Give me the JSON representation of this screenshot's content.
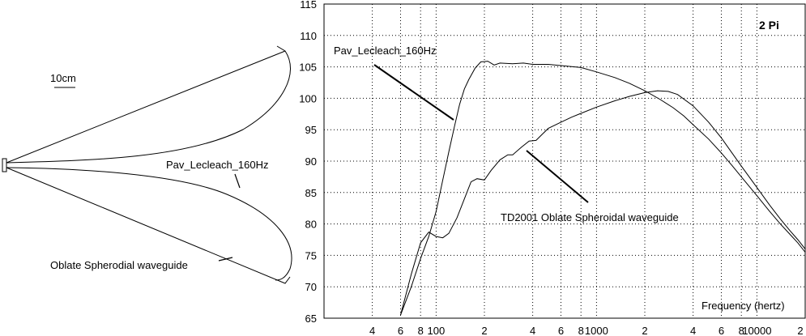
{
  "left_diagram": {
    "scale_label": "10cm",
    "pav_label": "Pav_Lecleach_160Hz",
    "oblate_label": "Oblate Spherodial waveguide"
  },
  "chart_data": {
    "type": "line",
    "title": "2 Pi",
    "xlabel": "Frequency (hertz)",
    "ylabel": "",
    "x_scale": "log",
    "xlim": [
      20,
      20000
    ],
    "ylim": [
      65,
      115
    ],
    "grid": true,
    "y_ticks": [
      65,
      70,
      75,
      80,
      85,
      90,
      95,
      100,
      105,
      110,
      115
    ],
    "x_tick_labels": [
      {
        "x": 40,
        "label": "4"
      },
      {
        "x": 60,
        "label": "6"
      },
      {
        "x": 80,
        "label": "8"
      },
      {
        "x": 100,
        "label": "100"
      },
      {
        "x": 200,
        "label": "2"
      },
      {
        "x": 400,
        "label": "4"
      },
      {
        "x": 600,
        "label": "6"
      },
      {
        "x": 800,
        "label": "8"
      },
      {
        "x": 1000,
        "label": "1000"
      },
      {
        "x": 2000,
        "label": "2"
      },
      {
        "x": 4000,
        "label": "4"
      },
      {
        "x": 6000,
        "label": "6"
      },
      {
        "x": 8000,
        "label": "8"
      },
      {
        "x": 10000,
        "label": "10000"
      },
      {
        "x": 20000,
        "label": "2"
      }
    ],
    "annotations": [
      "Pav_Lecleach_160Hz",
      "TD2001 Oblate Spheroidal waveguide"
    ],
    "series": [
      {
        "name": "Pav_Lecleach_160Hz",
        "x": [
          60,
          70,
          80,
          90,
          100,
          110,
          120,
          130,
          140,
          150,
          160,
          175,
          190,
          210,
          230,
          250,
          300,
          350,
          400,
          500,
          600,
          800,
          1000,
          1300,
          1600,
          2000,
          2500,
          3000,
          3500,
          4000,
          5000,
          6000,
          7000,
          8000,
          10000,
          12000,
          14000,
          16000,
          18000,
          20000
        ],
        "y": [
          65.5,
          70,
          74.5,
          78,
          82,
          87,
          91.5,
          95.5,
          99,
          101.5,
          103,
          104.8,
          105.8,
          105.9,
          105.3,
          105.6,
          105.5,
          105.6,
          105.4,
          105.4,
          105.2,
          104.9,
          104.2,
          103.3,
          102.4,
          101.2,
          99.8,
          98.5,
          97.2,
          95.8,
          93.5,
          91.3,
          89.3,
          87.5,
          84.5,
          82,
          80,
          78.4,
          77,
          75.5
        ]
      },
      {
        "name": "TD2001 Oblate Spheroidal waveguide",
        "x": [
          60,
          70,
          80,
          90,
          100,
          110,
          120,
          135,
          150,
          165,
          180,
          200,
          220,
          250,
          280,
          300,
          340,
          380,
          420,
          460,
          500,
          600,
          700,
          800,
          1000,
          1300,
          1600,
          2000,
          2400,
          2800,
          3200,
          4000,
          5000,
          6000,
          7000,
          8000,
          10000,
          12000,
          14000,
          16000,
          18000,
          20000
        ],
        "y": [
          65.5,
          72,
          77,
          78.7,
          78,
          77.8,
          78.5,
          81,
          84,
          86.7,
          87.2,
          87,
          88.5,
          90.2,
          91,
          91,
          92.2,
          93.2,
          93.3,
          94.3,
          95.2,
          96.2,
          97,
          97.6,
          98.6,
          99.6,
          100.3,
          100.9,
          101.2,
          101.1,
          100.6,
          98.8,
          96.2,
          93.7,
          91.3,
          89.2,
          85.8,
          83,
          80.8,
          79,
          77.5,
          76
        ]
      }
    ]
  }
}
